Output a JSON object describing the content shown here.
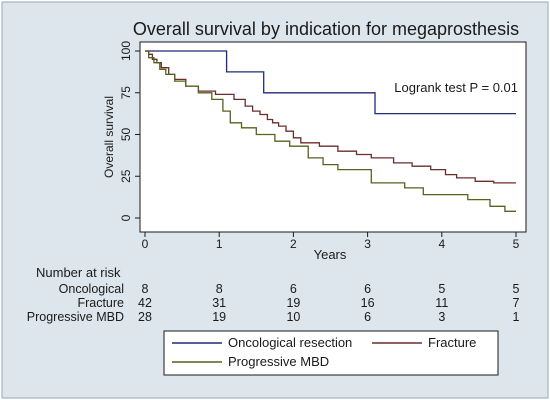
{
  "chart_data": {
    "type": "line",
    "title": "Overall survival by indication for megaprosthesis",
    "xlabel": "Years",
    "ylabel": "Overall survival",
    "xlim": [
      0,
      5
    ],
    "ylim": [
      0,
      100
    ],
    "x_ticks": [
      0,
      1,
      2,
      3,
      4,
      5
    ],
    "y_ticks": [
      0,
      25,
      50,
      75,
      100
    ],
    "grid": false,
    "legend_placement": "bottom",
    "annotation": "Logrank test P = 0.01",
    "series": [
      {
        "name": "Oncological resection",
        "color": "#1f2a7a",
        "x": [
          0,
          1.1,
          1.1,
          1.6,
          1.6,
          3.1,
          3.1,
          5.0
        ],
        "y": [
          100,
          100,
          87.5,
          87.5,
          75,
          75,
          62.5,
          62.5
        ]
      },
      {
        "name": "Fracture",
        "color": "#6b2d2b",
        "x": [
          0,
          0.05,
          0.05,
          0.1,
          0.1,
          0.16,
          0.16,
          0.22,
          0.22,
          0.32,
          0.32,
          0.4,
          0.4,
          0.55,
          0.55,
          0.72,
          0.72,
          0.95,
          0.95,
          1.2,
          1.2,
          1.35,
          1.35,
          1.45,
          1.45,
          1.55,
          1.55,
          1.65,
          1.65,
          1.72,
          1.72,
          1.8,
          1.8,
          1.9,
          1.9,
          2.0,
          2.0,
          2.1,
          2.1,
          2.35,
          2.35,
          2.6,
          2.6,
          2.85,
          2.85,
          3.05,
          3.05,
          3.35,
          3.35,
          3.6,
          3.6,
          3.85,
          3.85,
          4.05,
          4.05,
          4.2,
          4.2,
          4.45,
          4.45,
          4.7,
          4.7,
          5.0
        ],
        "y": [
          100,
          100,
          98,
          98,
          95,
          95,
          93,
          93,
          90,
          90,
          86,
          86,
          83,
          83,
          79,
          79,
          76,
          76,
          74,
          74,
          71,
          71,
          67,
          67,
          64,
          64,
          62,
          62,
          59,
          59,
          57,
          57,
          55,
          55,
          52,
          52,
          48,
          48,
          45,
          45,
          43,
          43,
          40,
          40,
          38,
          38,
          36,
          36,
          33,
          33,
          31,
          31,
          29,
          29,
          26,
          26,
          24,
          24,
          22,
          22,
          21,
          21
        ]
      },
      {
        "name": "Progressive MBD",
        "color": "#56621e",
        "x": [
          0,
          0.05,
          0.05,
          0.12,
          0.12,
          0.2,
          0.2,
          0.28,
          0.28,
          0.4,
          0.4,
          0.55,
          0.55,
          0.72,
          0.72,
          0.9,
          0.9,
          1.05,
          1.05,
          1.15,
          1.15,
          1.3,
          1.3,
          1.5,
          1.5,
          1.75,
          1.75,
          1.95,
          1.95,
          2.2,
          2.2,
          2.4,
          2.4,
          2.6,
          2.6,
          3.05,
          3.05,
          3.5,
          3.5,
          3.75,
          3.75,
          4.35,
          4.35,
          4.65,
          4.65,
          4.85,
          4.85,
          5.0
        ],
        "y": [
          100,
          100,
          96,
          96,
          93,
          93,
          89,
          89,
          86,
          86,
          82,
          82,
          79,
          79,
          75,
          75,
          71,
          71,
          64,
          64,
          57,
          57,
          54,
          54,
          50,
          50,
          46,
          46,
          43,
          43,
          36,
          36,
          32,
          32,
          29,
          29,
          21,
          21,
          18,
          18,
          14,
          14,
          11,
          11,
          7,
          7,
          4,
          4
        ]
      }
    ],
    "risk_table": {
      "header": "Number at risk",
      "rows": [
        {
          "label": "Oncological",
          "values": [
            "8",
            "8",
            "6",
            "6",
            "5",
            "5"
          ]
        },
        {
          "label": "Fracture",
          "values": [
            "42",
            "31",
            "19",
            "16",
            "11",
            "7"
          ]
        },
        {
          "label": "Progressive MBD",
          "values": [
            "28",
            "19",
            "10",
            "6",
            "3",
            "1"
          ]
        }
      ]
    }
  },
  "colors": {
    "background": "#ffffff",
    "panel_background": "#dde6ec",
    "title": "#1f3a5a",
    "axis": "#1a1a1a"
  }
}
